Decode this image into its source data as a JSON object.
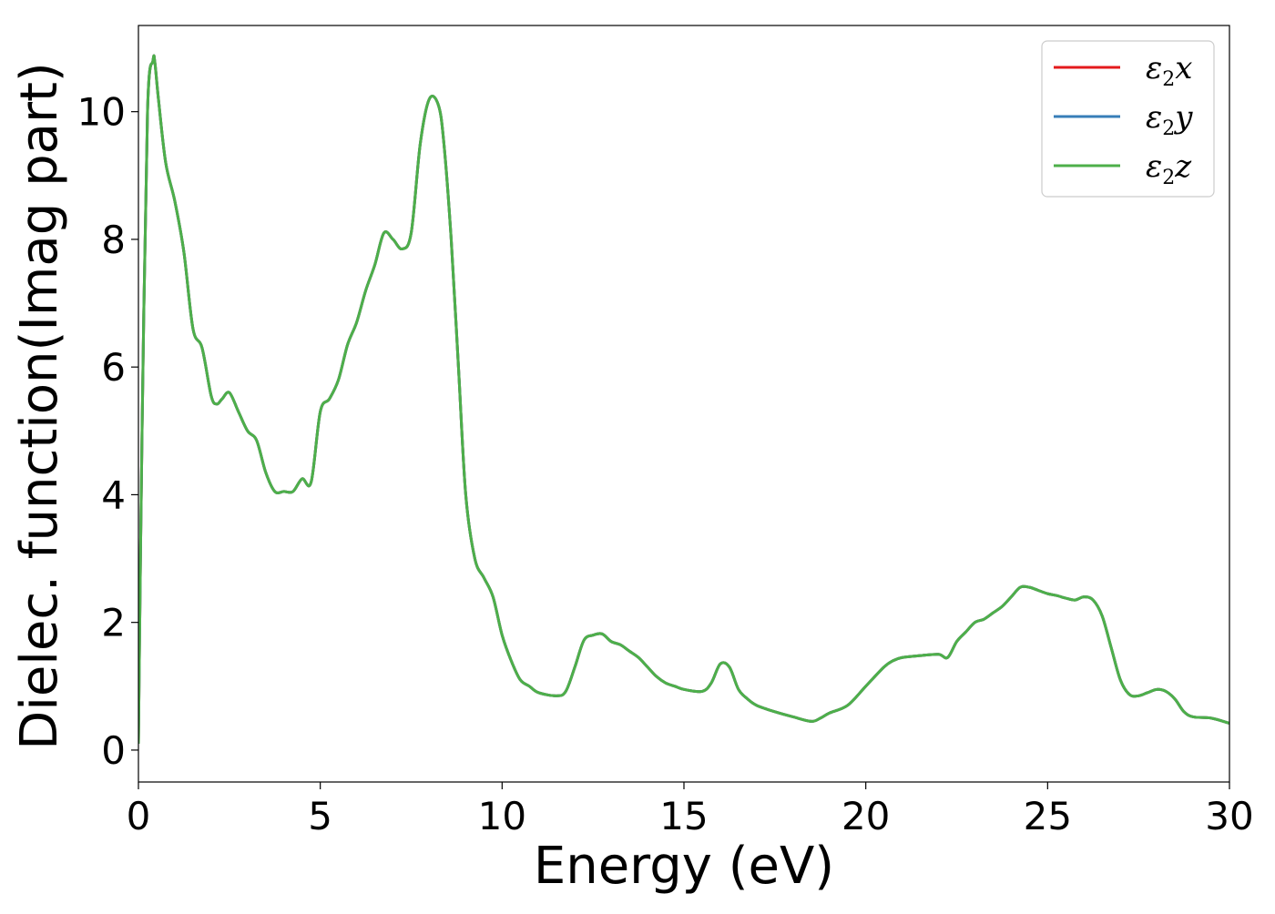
{
  "chart_data": {
    "type": "line",
    "title": "",
    "xlabel": "Energy (eV)",
    "ylabel": "Dielec. function(Imag part)",
    "xlim": [
      0,
      30
    ],
    "ylim": [
      -0.5,
      11.35
    ],
    "xticks": [
      0,
      5,
      10,
      15,
      20,
      25,
      30
    ],
    "yticks": [
      0,
      2,
      4,
      6,
      8,
      10
    ],
    "grid": false,
    "legend_position": "top-right",
    "x": [
      0,
      0.1,
      0.25,
      0.4,
      0.45,
      0.55,
      0.75,
      1.0,
      1.25,
      1.5,
      1.75,
      2.0,
      2.15,
      2.3,
      2.5,
      2.75,
      3.0,
      3.25,
      3.5,
      3.75,
      4.0,
      4.25,
      4.5,
      4.75,
      5.0,
      5.25,
      5.5,
      5.75,
      6.0,
      6.25,
      6.5,
      6.75,
      7.0,
      7.25,
      7.5,
      7.75,
      8.0,
      8.25,
      8.4,
      8.6,
      8.8,
      9.0,
      9.25,
      9.5,
      9.75,
      10.0,
      10.25,
      10.5,
      10.75,
      11.0,
      11.5,
      11.75,
      12.0,
      12.25,
      12.5,
      12.75,
      13.0,
      13.25,
      13.5,
      13.75,
      14.0,
      14.25,
      14.5,
      14.75,
      15.0,
      15.5,
      15.75,
      16.0,
      16.25,
      16.5,
      16.75,
      17.0,
      17.5,
      18.0,
      18.5,
      18.75,
      19.0,
      19.5,
      20.0,
      20.5,
      20.75,
      21.0,
      21.5,
      22.0,
      22.25,
      22.5,
      22.75,
      23.0,
      23.25,
      23.5,
      23.75,
      24.0,
      24.25,
      24.5,
      24.75,
      25.0,
      25.25,
      25.5,
      25.75,
      26.0,
      26.25,
      26.5,
      26.75,
      27.0,
      27.25,
      27.5,
      27.75,
      28.0,
      28.25,
      28.5,
      28.75,
      29.0,
      29.5,
      30.0
    ],
    "series": [
      {
        "name": "ε2x",
        "color": "#e41a1c",
        "y": [
          0.1,
          5.0,
          10.0,
          10.8,
          10.78,
          10.2,
          9.2,
          8.6,
          7.8,
          6.6,
          6.3,
          5.55,
          5.42,
          5.5,
          5.6,
          5.3,
          5.0,
          4.85,
          4.35,
          4.05,
          4.05,
          4.05,
          4.25,
          4.2,
          5.3,
          5.5,
          5.8,
          6.35,
          6.7,
          7.2,
          7.6,
          8.1,
          8.0,
          7.85,
          8.1,
          9.5,
          10.2,
          10.1,
          9.5,
          8.0,
          6.0,
          4.0,
          3.0,
          2.7,
          2.4,
          1.8,
          1.4,
          1.1,
          1.0,
          0.9,
          0.85,
          0.92,
          1.3,
          1.72,
          1.8,
          1.82,
          1.7,
          1.65,
          1.55,
          1.45,
          1.3,
          1.15,
          1.05,
          1.0,
          0.95,
          0.92,
          1.05,
          1.35,
          1.3,
          0.95,
          0.8,
          0.7,
          0.6,
          0.52,
          0.45,
          0.5,
          0.58,
          0.7,
          1.0,
          1.3,
          1.4,
          1.45,
          1.48,
          1.5,
          1.45,
          1.7,
          1.85,
          2.0,
          2.05,
          2.15,
          2.25,
          2.4,
          2.55,
          2.55,
          2.5,
          2.45,
          2.42,
          2.38,
          2.35,
          2.4,
          2.35,
          2.1,
          1.6,
          1.1,
          0.87,
          0.85,
          0.9,
          0.95,
          0.92,
          0.8,
          0.6,
          0.52,
          0.5,
          0.42
        ]
      },
      {
        "name": "ε2y",
        "color": "#377eb8",
        "y": [
          0.1,
          5.0,
          10.0,
          10.8,
          10.78,
          10.2,
          9.2,
          8.6,
          7.8,
          6.6,
          6.3,
          5.55,
          5.42,
          5.5,
          5.6,
          5.3,
          5.0,
          4.85,
          4.35,
          4.05,
          4.05,
          4.05,
          4.25,
          4.2,
          5.3,
          5.5,
          5.8,
          6.35,
          6.7,
          7.2,
          7.6,
          8.1,
          8.0,
          7.85,
          8.1,
          9.5,
          10.2,
          10.1,
          9.5,
          8.0,
          6.0,
          4.0,
          3.0,
          2.7,
          2.4,
          1.8,
          1.4,
          1.1,
          1.0,
          0.9,
          0.85,
          0.92,
          1.3,
          1.72,
          1.8,
          1.82,
          1.7,
          1.65,
          1.55,
          1.45,
          1.3,
          1.15,
          1.05,
          1.0,
          0.95,
          0.92,
          1.05,
          1.35,
          1.3,
          0.95,
          0.8,
          0.7,
          0.6,
          0.52,
          0.45,
          0.5,
          0.58,
          0.7,
          1.0,
          1.3,
          1.4,
          1.45,
          1.48,
          1.5,
          1.45,
          1.7,
          1.85,
          2.0,
          2.05,
          2.15,
          2.25,
          2.4,
          2.55,
          2.55,
          2.5,
          2.45,
          2.42,
          2.38,
          2.35,
          2.4,
          2.35,
          2.1,
          1.6,
          1.1,
          0.87,
          0.85,
          0.9,
          0.95,
          0.92,
          0.8,
          0.6,
          0.52,
          0.5,
          0.42
        ]
      },
      {
        "name": "ε2z",
        "color": "#4daf4a",
        "y": [
          0.1,
          5.0,
          10.0,
          10.8,
          10.78,
          10.2,
          9.2,
          8.6,
          7.8,
          6.6,
          6.3,
          5.55,
          5.42,
          5.5,
          5.6,
          5.3,
          5.0,
          4.85,
          4.35,
          4.05,
          4.05,
          4.05,
          4.25,
          4.2,
          5.3,
          5.5,
          5.8,
          6.35,
          6.7,
          7.2,
          7.6,
          8.1,
          8.0,
          7.85,
          8.1,
          9.5,
          10.2,
          10.1,
          9.5,
          8.0,
          6.0,
          4.0,
          3.0,
          2.7,
          2.4,
          1.8,
          1.4,
          1.1,
          1.0,
          0.9,
          0.85,
          0.92,
          1.3,
          1.72,
          1.8,
          1.82,
          1.7,
          1.65,
          1.55,
          1.45,
          1.3,
          1.15,
          1.05,
          1.0,
          0.95,
          0.92,
          1.05,
          1.35,
          1.3,
          0.95,
          0.8,
          0.7,
          0.6,
          0.52,
          0.45,
          0.5,
          0.58,
          0.7,
          1.0,
          1.3,
          1.4,
          1.45,
          1.48,
          1.5,
          1.45,
          1.7,
          1.85,
          2.0,
          2.05,
          2.15,
          2.25,
          2.4,
          2.55,
          2.55,
          2.5,
          2.45,
          2.42,
          2.38,
          2.35,
          2.4,
          2.35,
          2.1,
          1.6,
          1.1,
          0.87,
          0.85,
          0.9,
          0.95,
          0.92,
          0.8,
          0.6,
          0.52,
          0.5,
          0.42
        ]
      }
    ]
  }
}
